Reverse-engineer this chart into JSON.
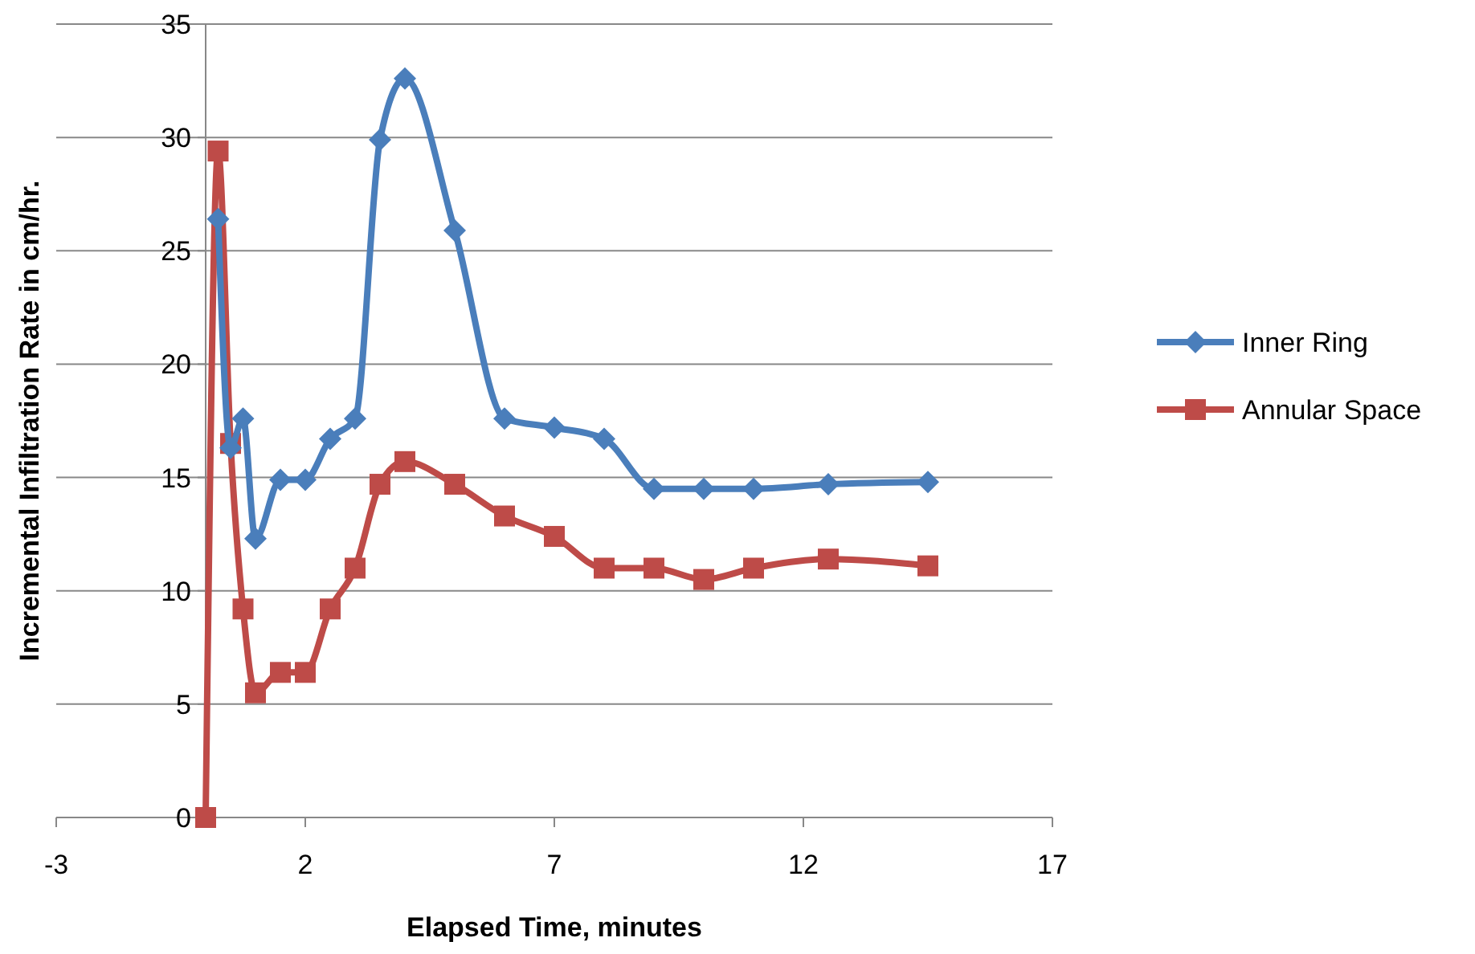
{
  "chart_data": {
    "type": "line",
    "xlabel": "Elapsed Time, minutes",
    "ylabel": "Incremental Infiltration Rate in cm/hr.",
    "xlim": [
      -3,
      17
    ],
    "xticks": [
      -3,
      2,
      7,
      12,
      17
    ],
    "ylim": [
      0,
      35
    ],
    "yticks": [
      0,
      5,
      10,
      15,
      20,
      25,
      30,
      35
    ],
    "grid": "y",
    "legend": "right",
    "series": [
      {
        "name": "Inner Ring",
        "color": "#4a7ebb",
        "marker": "diamond",
        "x": [
          0.25,
          0.5,
          0.75,
          1,
          1.5,
          2,
          2.5,
          3,
          3.5,
          4,
          5,
          6,
          7,
          8,
          9,
          10,
          11,
          12.5,
          14.5
        ],
        "values": [
          26.4,
          16.3,
          17.6,
          12.3,
          14.9,
          14.9,
          16.7,
          17.6,
          29.9,
          32.6,
          25.9,
          17.6,
          17.2,
          16.7,
          14.5,
          14.5,
          14.5,
          14.7,
          14.8
        ]
      },
      {
        "name": "Annular Space",
        "color": "#be4b48",
        "marker": "square",
        "x": [
          0,
          0.25,
          0.5,
          0.75,
          1,
          1.5,
          2,
          2.5,
          3,
          3.5,
          4,
          5,
          6,
          7,
          8,
          9,
          10,
          11,
          12.5,
          14.5
        ],
        "values": [
          0,
          29.4,
          16.5,
          9.2,
          5.5,
          6.4,
          6.4,
          9.2,
          11,
          14.7,
          15.7,
          14.7,
          13.3,
          12.4,
          11,
          11,
          10.5,
          11,
          11.4,
          11.1
        ]
      }
    ]
  }
}
